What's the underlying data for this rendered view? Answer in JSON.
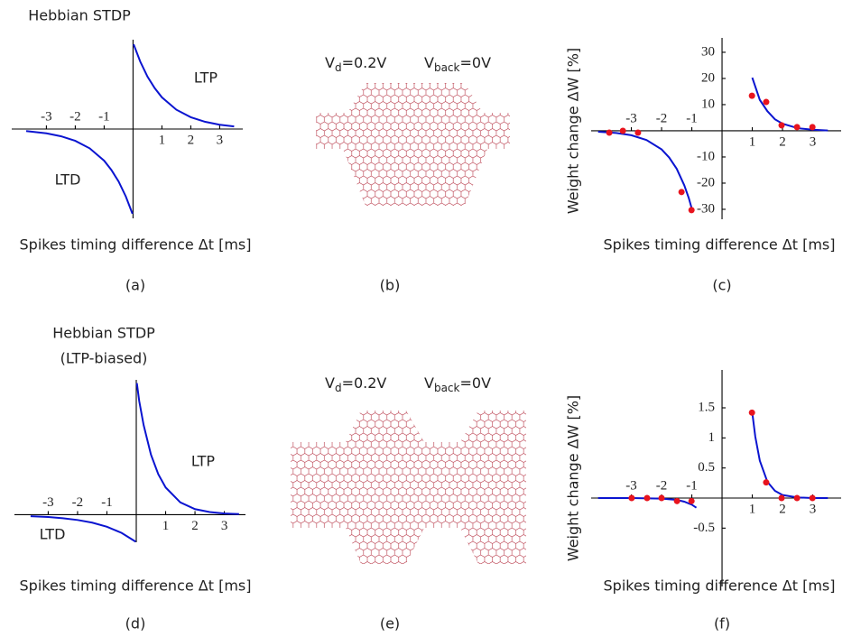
{
  "chart_data": [
    {
      "type": "line",
      "title": "Hebbian STDP",
      "annotations": [
        "LTP",
        "LTD"
      ],
      "xlabel": "Spikes timing difference Δt [ms]",
      "caption": "(a)",
      "xlim": [
        -4.2,
        3.8
      ],
      "ylim": [
        -3.1,
        3.1
      ],
      "xticks": [
        -3,
        -2,
        -1,
        1,
        2,
        3
      ],
      "series": [
        {
          "style": "line",
          "color": "#0a14d0",
          "x": [
            0.02,
            0.25,
            0.5,
            0.75,
            1,
            1.5,
            2,
            2.5,
            3,
            3.5
          ],
          "values": [
            2.94,
            2.34,
            1.82,
            1.42,
            1.1,
            0.67,
            0.41,
            0.25,
            0.15,
            0.09
          ]
        },
        {
          "style": "line",
          "color": "#0a14d0",
          "x": [
            -3.7,
            -3,
            -2.5,
            -2,
            -1.5,
            -1,
            -0.75,
            -0.5,
            -0.25,
            -0.02
          ],
          "values": [
            -0.07,
            -0.15,
            -0.25,
            -0.41,
            -0.67,
            -1.1,
            -1.42,
            -1.82,
            -2.34,
            -2.94
          ]
        }
      ]
    },
    {
      "type": "line",
      "ylabel": "Weight change ΔW [%]",
      "xlabel": "Spikes timing difference Δt [ms]",
      "caption": "(c)",
      "xlim": [
        -4.33,
        3.94
      ],
      "ylim": [
        -33.8,
        35.5
      ],
      "xticks": [
        -3,
        -2,
        -1,
        1,
        2,
        3
      ],
      "yticks": [
        30,
        20,
        10,
        -10,
        -20,
        -30
      ],
      "series": [
        {
          "style": "line",
          "color": "#0a14d0",
          "x": [
            1,
            1.25,
            1.5,
            1.75,
            2,
            2.5,
            3,
            3.5
          ],
          "values": [
            20.3,
            11.8,
            7.5,
            4.4,
            2.7,
            1.0,
            0.4,
            0.1
          ]
        },
        {
          "style": "line",
          "color": "#0a14d0",
          "x": [
            -4.1,
            -3.5,
            -3,
            -2.5,
            -2,
            -1.75,
            -1.5,
            -1.25,
            -1.1,
            -0.97
          ],
          "values": [
            -0.35,
            -0.84,
            -1.7,
            -3.5,
            -7.1,
            -10.2,
            -14.5,
            -20.8,
            -25.7,
            -31
          ]
        },
        {
          "style": "markers",
          "color": "#e8141e",
          "x": [
            -3.73,
            -3.28,
            -2.78,
            -1.34,
            -1.01,
            0.99,
            1.46,
            1.97,
            2.48,
            2.99
          ],
          "values": [
            -0.7,
            0,
            -0.7,
            -23.4,
            -30.3,
            13.4,
            11.0,
            2.1,
            1.4,
            1.4
          ]
        }
      ]
    },
    {
      "type": "line",
      "title": "Hebbian STDP",
      "subtitle": "(LTP-biased)",
      "annotations": [
        "LTP",
        "LTD"
      ],
      "xlabel": "Spikes timing difference Δt [ms]",
      "caption": "(d)",
      "xlim": [
        -4.15,
        3.72
      ],
      "ylim": [
        -0.94,
        4.6
      ],
      "xticks": [
        -3,
        -2,
        -1,
        1,
        2,
        3
      ],
      "series": [
        {
          "style": "line",
          "color": "#0a14d0",
          "x": [
            0.02,
            0.1,
            0.25,
            0.5,
            0.75,
            1,
            1.5,
            2,
            2.5,
            3,
            3.5
          ],
          "values": [
            4.49,
            3.88,
            3.06,
            2.05,
            1.38,
            0.93,
            0.42,
            0.19,
            0.09,
            0.04,
            0.02
          ]
        },
        {
          "style": "line",
          "color": "#0a14d0",
          "x": [
            -3.6,
            -3,
            -2.5,
            -2,
            -1.5,
            -1,
            -0.5,
            -0.02
          ],
          "values": [
            -0.05,
            -0.08,
            -0.12,
            -0.18,
            -0.27,
            -0.41,
            -0.62,
            -0.92
          ]
        }
      ]
    },
    {
      "type": "line",
      "ylabel": "Weight change ΔW [%]",
      "xlabel": "Spikes timing difference Δt [ms]",
      "caption": "(f)",
      "xlim": [
        -4.33,
        3.94
      ],
      "ylim": [
        -1.47,
        2.13
      ],
      "xticks": [
        -3,
        -2,
        -1,
        1,
        2,
        3
      ],
      "yticks": [
        1.5,
        1,
        0.5,
        -0.5
      ],
      "series": [
        {
          "style": "line",
          "color": "#0a14d0",
          "x": [
            1,
            1.1,
            1.25,
            1.5,
            1.75,
            2,
            2.5,
            3,
            3.5
          ],
          "values": [
            1.42,
            1.02,
            0.62,
            0.27,
            0.12,
            0.05,
            0.01,
            0,
            0
          ]
        },
        {
          "style": "line",
          "color": "#0a14d0",
          "x": [
            -4.1,
            -3,
            -2,
            -1.5,
            -1.25,
            -1,
            -0.85
          ],
          "values": [
            0,
            0,
            -0.01,
            -0.03,
            -0.06,
            -0.11,
            -0.16
          ]
        },
        {
          "style": "markers",
          "color": "#e8141e",
          "x": [
            -2.99,
            -2.48,
            -2.0,
            -1.49,
            -1.01,
            0.99,
            1.46,
            1.97,
            2.48,
            2.99
          ],
          "values": [
            0,
            0,
            0,
            -0.05,
            -0.05,
            1.42,
            0.26,
            0,
            0,
            0
          ]
        }
      ]
    }
  ],
  "diagrams": [
    {
      "labels": [
        {
          "base": "V",
          "sub": "d",
          "rest": "=0.2V"
        },
        {
          "base": "V",
          "sub": "back",
          "rest": "=0V"
        }
      ],
      "caption": "(b)"
    },
    {
      "labels": [
        {
          "base": "V",
          "sub": "d",
          "rest": "=0.2V"
        },
        {
          "base": "V",
          "sub": "back",
          "rest": "=0V"
        }
      ],
      "caption": "(e)"
    }
  ]
}
